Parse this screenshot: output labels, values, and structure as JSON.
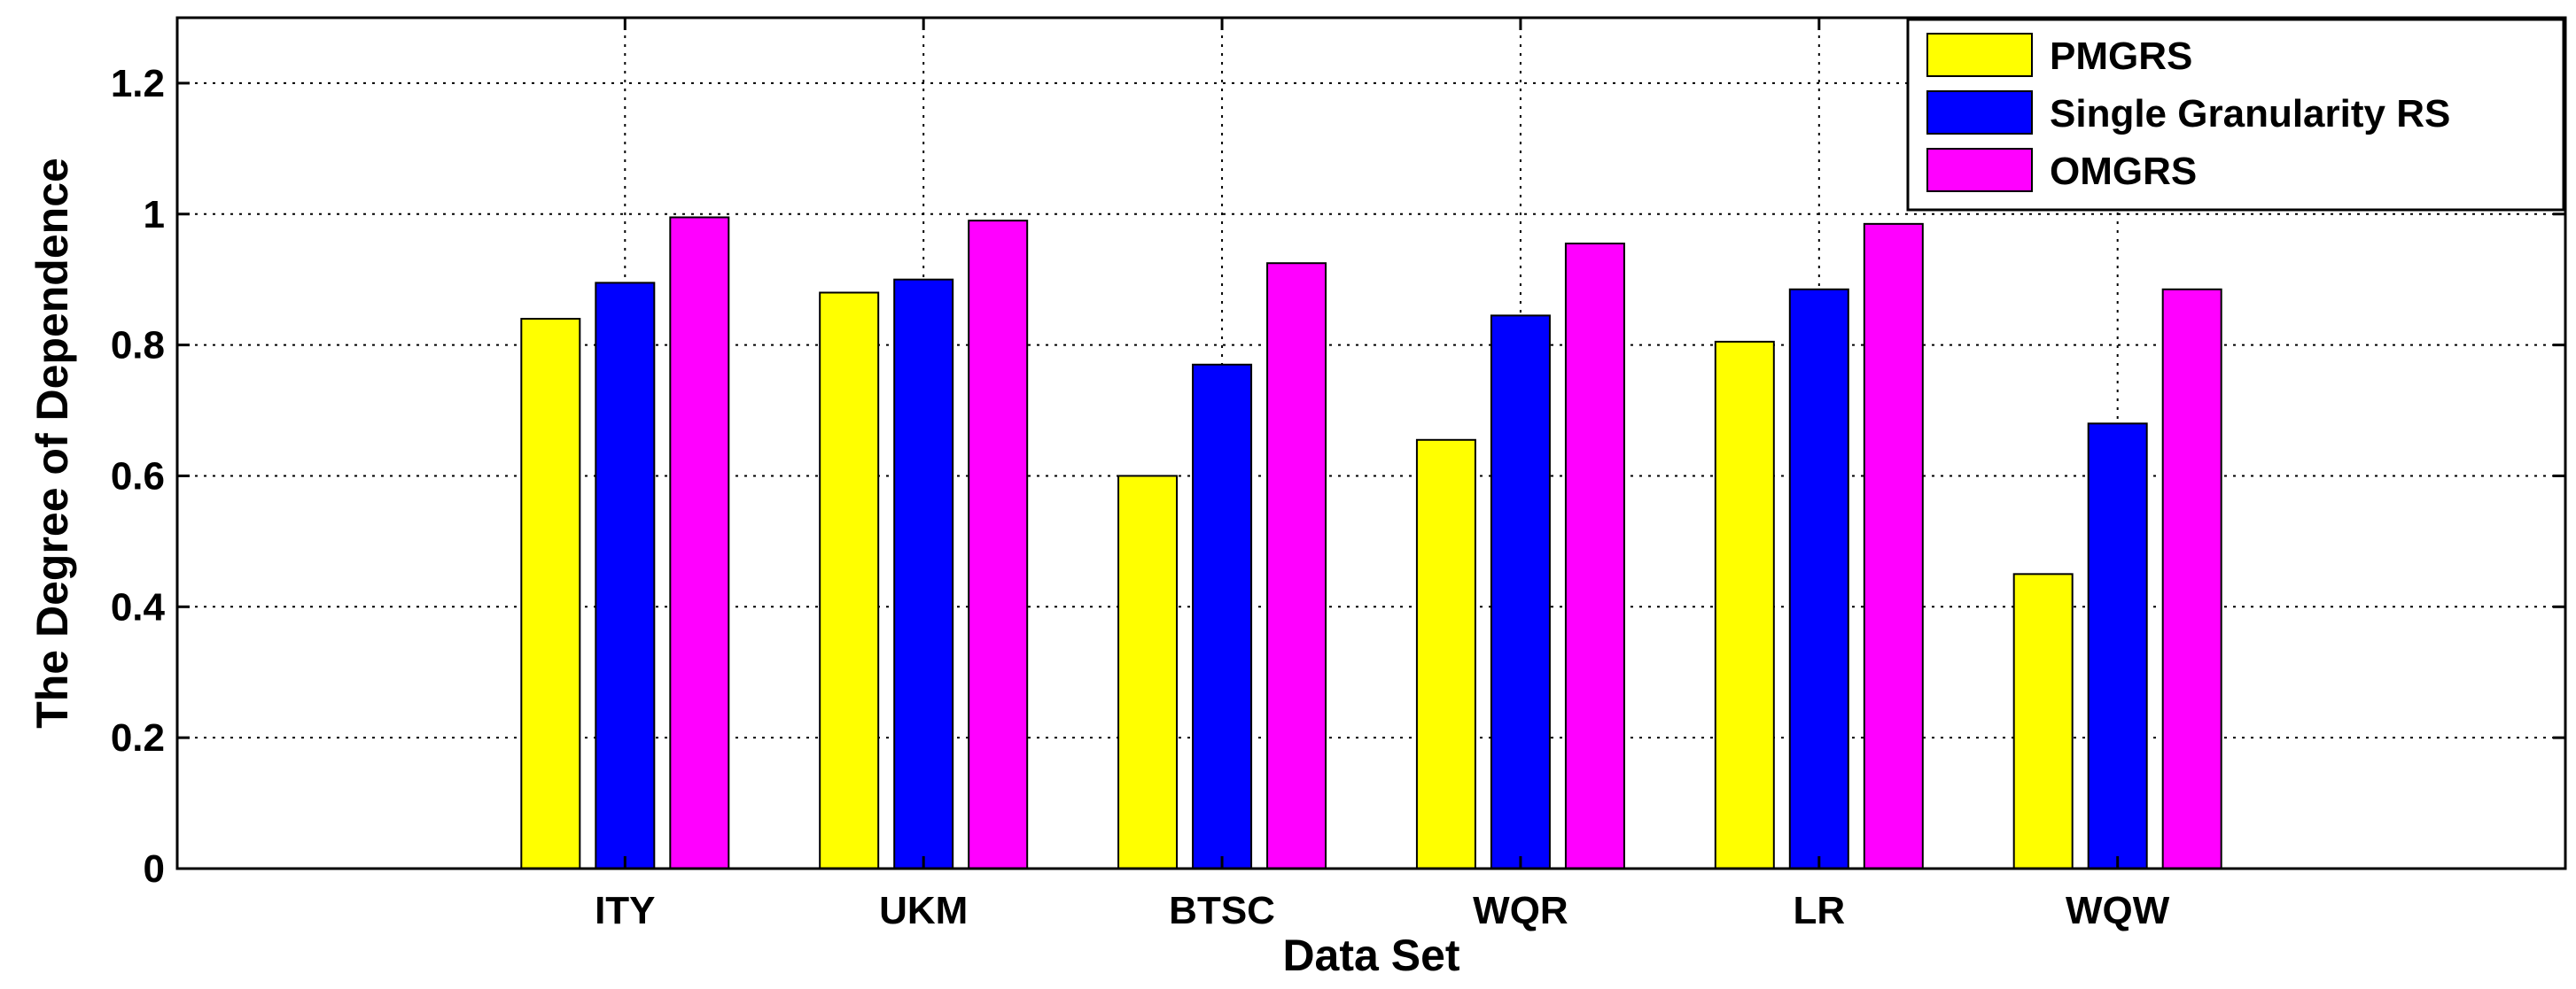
{
  "chart_data": {
    "type": "bar",
    "categories": [
      "ITY",
      "UKM",
      "BTSC",
      "WQR",
      "LR",
      "WQW"
    ],
    "series": [
      {
        "name": "PMGRS",
        "color": "#ffff00",
        "values": [
          0.84,
          0.88,
          0.6,
          0.655,
          0.805,
          0.45
        ]
      },
      {
        "name": "Single Granularity RS",
        "color": "#0000ff",
        "values": [
          0.895,
          0.9,
          0.77,
          0.845,
          0.885,
          0.68
        ]
      },
      {
        "name": "OMGRS",
        "color": "#ff00ff",
        "values": [
          0.995,
          0.99,
          0.925,
          0.955,
          0.985,
          0.885
        ]
      }
    ],
    "xlabel": "Data Set",
    "ylabel": "The Degree of Dependence",
    "ylim": [
      0,
      1.3
    ],
    "yticks": [
      0,
      0.2,
      0.4,
      0.6,
      0.8,
      1,
      1.2
    ],
    "ytick_labels": [
      "0",
      "0.2",
      "0.4",
      "0.6",
      "0.8",
      "1",
      "1.2"
    ],
    "grid": true,
    "legend_position": "top-right"
  }
}
